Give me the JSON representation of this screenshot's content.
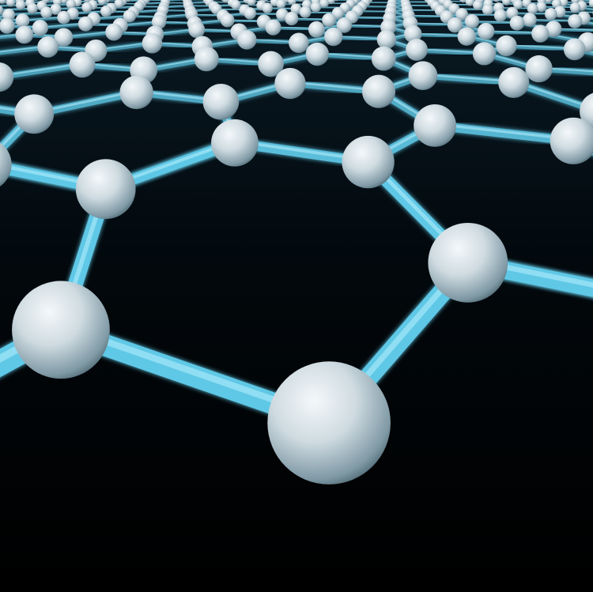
{
  "image": {
    "subject": "graphene-hexagonal-lattice",
    "colors": {
      "background": "#000000",
      "bond": "#5ec8e6",
      "bond_highlight": "#b8f0ff",
      "atom": "#d9e3e8",
      "atom_shadow": "#5d7580",
      "glow": "#2fb4e0"
    }
  }
}
